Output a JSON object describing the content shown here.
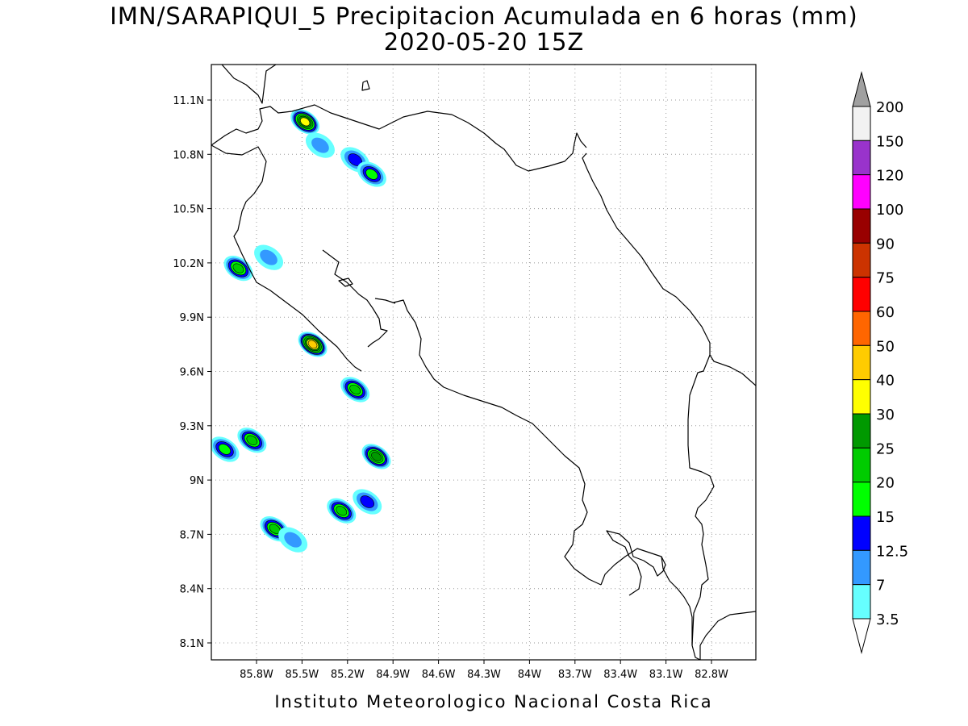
{
  "title": {
    "line1": "IMN/SARAPIQUI_5 Precipitacion Acumulada en 6 horas (mm)",
    "line2": "2020-05-20 15Z"
  },
  "footer": "Instituto Meteorologico Nacional Costa Rica",
  "map": {
    "type": "filled-contour precipitation map",
    "lon_range": [
      -86.05,
      -82.55
    ],
    "lat_range": [
      8.0,
      11.25
    ],
    "lat_ticks": [
      {
        "value": 11.1,
        "label": "11.1N"
      },
      {
        "value": 10.8,
        "label": "10.8N"
      },
      {
        "value": 10.5,
        "label": "10.5N"
      },
      {
        "value": 10.2,
        "label": "10.2N"
      },
      {
        "value": 9.9,
        "label": "9.9N"
      },
      {
        "value": 9.6,
        "label": "9.6N"
      },
      {
        "value": 9.3,
        "label": "9.3N"
      },
      {
        "value": 9.0,
        "label": "9N"
      },
      {
        "value": 8.7,
        "label": "8.7N"
      },
      {
        "value": 8.4,
        "label": "8.4N"
      },
      {
        "value": 8.1,
        "label": "8.1N"
      }
    ],
    "lon_ticks": [
      {
        "value": -85.8,
        "label": "85.8W"
      },
      {
        "value": -85.5,
        "label": "85.5W"
      },
      {
        "value": -85.2,
        "label": "85.2W"
      },
      {
        "value": -84.9,
        "label": "84.9W"
      },
      {
        "value": -84.6,
        "label": "84.6W"
      },
      {
        "value": -84.3,
        "label": "84.3W"
      },
      {
        "value": -84.0,
        "label": "84W"
      },
      {
        "value": -83.7,
        "label": "83.7W"
      },
      {
        "value": -83.4,
        "label": "83.4W"
      },
      {
        "value": -83.1,
        "label": "83.1W"
      },
      {
        "value": -82.8,
        "label": "82.8W"
      }
    ],
    "grid": true
  },
  "colorbar": {
    "levels": [
      {
        "label": "3.5",
        "color": "#66ffff"
      },
      {
        "label": "7",
        "color": "#3399ff"
      },
      {
        "label": "12.5",
        "color": "#0000ff"
      },
      {
        "label": "15",
        "color": "#00ff00"
      },
      {
        "label": "20",
        "color": "#00cc00"
      },
      {
        "label": "25",
        "color": "#009900"
      },
      {
        "label": "30",
        "color": "#ffff00"
      },
      {
        "label": "40",
        "color": "#ffcc00"
      },
      {
        "label": "50",
        "color": "#ff6600"
      },
      {
        "label": "60",
        "color": "#ff0000"
      },
      {
        "label": "75",
        "color": "#cc3300"
      },
      {
        "label": "90",
        "color": "#990000"
      },
      {
        "label": "100",
        "color": "#ff00ff"
      },
      {
        "label": "120",
        "color": "#9933cc"
      },
      {
        "label": "150",
        "color": "#f2f2f2"
      },
      {
        "label": "200",
        "color": "#a0a0a0"
      }
    ],
    "top_triangle_color": "#a0a0a0",
    "bottom_triangle_color": "#ffffff"
  },
  "precip_cells": [
    {
      "lon": -85.48,
      "lat": 10.98,
      "max": "30"
    },
    {
      "lon": -85.38,
      "lat": 10.85,
      "max": "7"
    },
    {
      "lon": -85.15,
      "lat": 10.77,
      "max": "12.5"
    },
    {
      "lon": -85.04,
      "lat": 10.69,
      "max": "15"
    },
    {
      "lon": -85.92,
      "lat": 10.17,
      "max": "20"
    },
    {
      "lon": -85.72,
      "lat": 10.23,
      "max": "7"
    },
    {
      "lon": -85.43,
      "lat": 9.75,
      "max": "40"
    },
    {
      "lon": -85.15,
      "lat": 9.5,
      "max": "20"
    },
    {
      "lon": -85.01,
      "lat": 9.13,
      "max": "25"
    },
    {
      "lon": -85.83,
      "lat": 9.22,
      "max": "20"
    },
    {
      "lon": -86.01,
      "lat": 9.17,
      "max": "15"
    },
    {
      "lon": -85.24,
      "lat": 8.83,
      "max": "20"
    },
    {
      "lon": -85.68,
      "lat": 8.73,
      "max": "20"
    },
    {
      "lon": -85.56,
      "lat": 8.67,
      "max": "7"
    },
    {
      "lon": -85.07,
      "lat": 8.88,
      "max": "12.5"
    }
  ]
}
